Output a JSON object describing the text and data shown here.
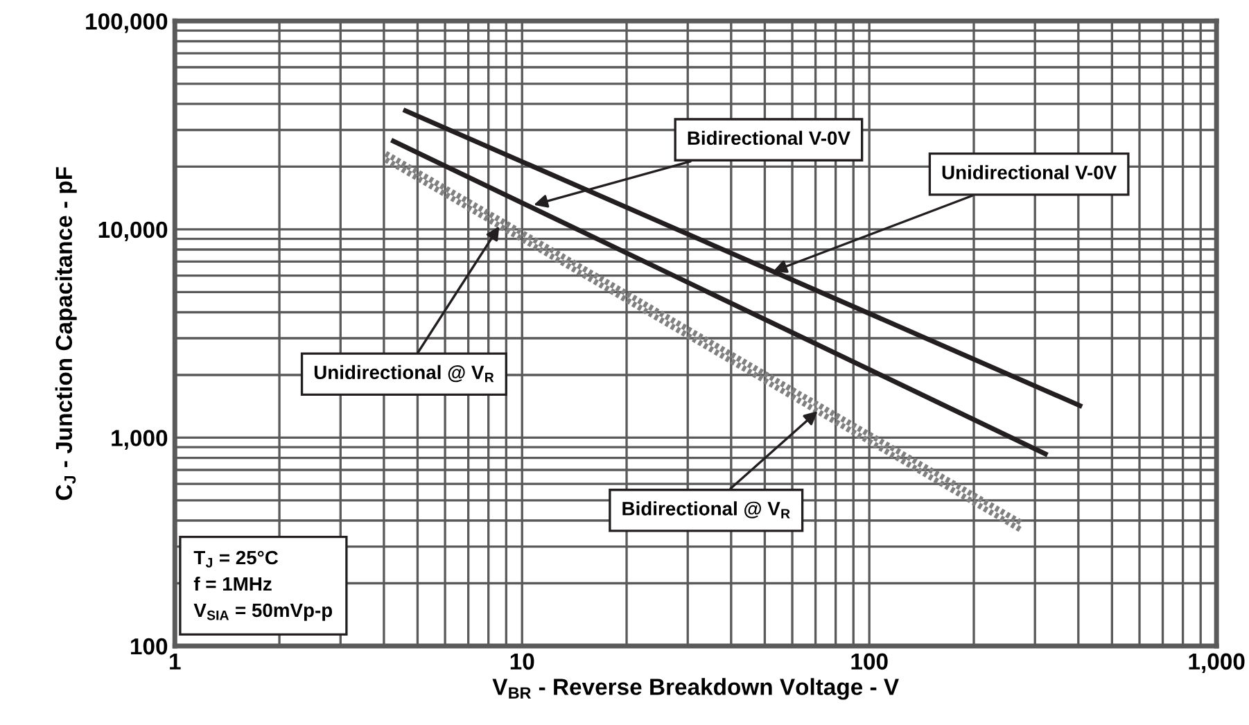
{
  "chart_data": {
    "type": "line",
    "xlabel": "V$_{BR}$ - Reverse Breakdown Voltage - V",
    "ylabel": "C$_{J}$ - Junction Capacitance - pF",
    "log": "xy",
    "xlim": [
      1,
      1000
    ],
    "ylim": [
      100,
      100000
    ],
    "xticks": [
      1,
      10,
      100,
      {
        "value": 1000,
        "label": "1,000"
      }
    ],
    "yticks": [
      100,
      {
        "value": 1000,
        "label": "1,000"
      },
      {
        "value": 10000,
        "label": "10,000"
      },
      {
        "value": 100000,
        "label": "100,000"
      }
    ],
    "grid": true,
    "marker": "none",
    "series": [
      {
        "color": "#231f20",
        "line_style": "solid",
        "x": [
          4.55,
          410
        ],
        "values": [
          37500,
          1410
        ]
      },
      {
        "color": "#231f20",
        "line_style": "solid",
        "x": [
          4.2,
          326
        ],
        "values": [
          26800,
          826
        ]
      },
      {
        "color": "#808080",
        "line_style": "dotted",
        "x": [
          4.05,
          274
        ],
        "values": [
          23100,
          390
        ]
      },
      {
        "color": "#808080",
        "line_style": "dotted",
        "x": [
          4.05,
          274
        ],
        "values": [
          21600,
          360
        ]
      }
    ],
    "annotations": [
      {
        "text": "Bidirectional V-0V",
        "x": 10.8,
        "y": 13100
      },
      {
        "text": "Unidirectional V-0V",
        "x": 52.8,
        "y": 6280
      },
      {
        "text": "Unidirectional @ V$_{R}$",
        "x": 8.6,
        "y": 10350
      },
      {
        "text": "Bidirectional @ V$_{R}$",
        "x": 71,
        "y": 1340
      },
      "T$_{J}$ = 25°C\nf = 1MHz\nV$_{SIA}$ = 50mVp-p"
    ]
  }
}
